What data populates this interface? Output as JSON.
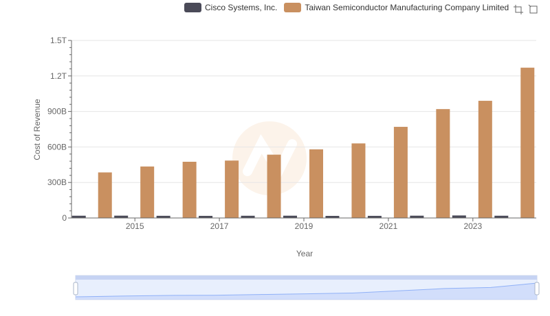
{
  "colors": {
    "cisco": "#4a4a58",
    "tsmc": "#c99060",
    "grid": "#e6e6e6",
    "axis": "#666666",
    "slider_fill": "#d6e2fb",
    "slider_line": "#8fb0f7",
    "slider_border": "#cdd6ea"
  },
  "legend": [
    {
      "name": "Cisco Systems, Inc.",
      "color": "#4a4a58"
    },
    {
      "name": "Taiwan Semiconductor Manufacturing Company Limited",
      "color": "#c99060"
    }
  ],
  "toolbox": [
    "zoom-icon",
    "zoom-reset-icon"
  ],
  "chart_data": {
    "type": "bar",
    "xlabel": "Year",
    "ylabel": "Cost of Revenue",
    "ylim": [
      0,
      1500000000000
    ],
    "y_ticks": [
      {
        "value": 0,
        "label": "0"
      },
      {
        "value": 300000000000,
        "label": "300B"
      },
      {
        "value": 600000000000,
        "label": "600B"
      },
      {
        "value": 900000000000,
        "label": "900B"
      },
      {
        "value": 1200000000000,
        "label": "1.2T"
      },
      {
        "value": 1500000000000,
        "label": "1.5T"
      }
    ],
    "categories": [
      "2014",
      "2015",
      "2016",
      "2017",
      "2018",
      "2019",
      "2020",
      "2021",
      "2022",
      "2023",
      "2024"
    ],
    "x_tick_labels": [
      "2015",
      "2017",
      "2019",
      "2021",
      "2023"
    ],
    "series": [
      {
        "name": "Cisco Systems, Inc.",
        "values": [
          19000000000,
          19500000000,
          18300000000,
          17800000000,
          18700000000,
          19200000000,
          17600000000,
          17900000000,
          19300000000,
          21200000000,
          18900000000
        ]
      },
      {
        "name": "Taiwan Semiconductor Manufacturing Company Limited",
        "values": [
          385000000000,
          435000000000,
          475000000000,
          485000000000,
          535000000000,
          580000000000,
          630000000000,
          770000000000,
          920000000000,
          990000000000,
          1270000000000
        ]
      }
    ]
  }
}
